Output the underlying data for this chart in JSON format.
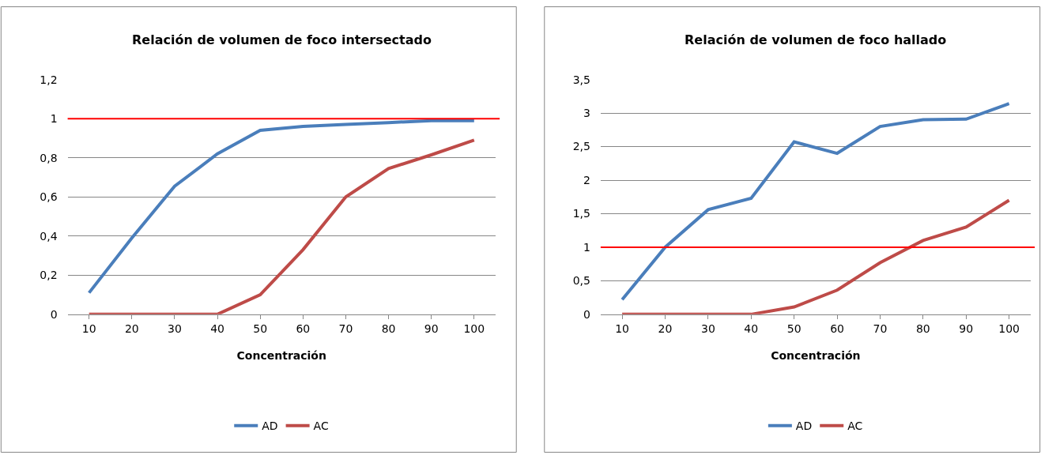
{
  "chart_data": [
    {
      "type": "line",
      "title": "Relación de volumen de foco intersectado",
      "xlabel": "Concentración",
      "categories": [
        "10",
        "20",
        "30",
        "40",
        "50",
        "60",
        "70",
        "80",
        "90",
        "100"
      ],
      "series": [
        {
          "name": "AD",
          "color": "#4a7ebb",
          "values": [
            0.11,
            0.39,
            0.655,
            0.82,
            0.94,
            0.96,
            0.97,
            0.98,
            0.99,
            0.99
          ]
        },
        {
          "name": "AC",
          "color": "#be4b48",
          "values": [
            0,
            0,
            0,
            0,
            0.1,
            0.33,
            0.6,
            0.745,
            0.815,
            0.89
          ]
        }
      ],
      "ylim": [
        0,
        1.2
      ],
      "yticks": [
        {
          "value": 0,
          "label": "0"
        },
        {
          "value": 0.2,
          "label": "0,2"
        },
        {
          "value": 0.4,
          "label": "0,4"
        },
        {
          "value": 0.6,
          "label": "0,6"
        },
        {
          "value": 0.8,
          "label": "0,8"
        },
        {
          "value": 1,
          "label": "1"
        },
        {
          "value": 1.2,
          "label": "1,2"
        }
      ],
      "ref_lines": [
        {
          "axis": "y",
          "value": 1,
          "color": "#ff0000"
        }
      ],
      "grid": "y",
      "legend": "bottom",
      "marker": "none",
      "line_style": "solid"
    },
    {
      "type": "line",
      "title": "Relación de volumen de foco hallado",
      "xlabel": "Concentración",
      "categories": [
        "10",
        "20",
        "30",
        "40",
        "50",
        "60",
        "70",
        "80",
        "90",
        "100"
      ],
      "series": [
        {
          "name": "AD",
          "color": "#4a7ebb",
          "values": [
            0.22,
            1.0,
            1.56,
            1.73,
            2.57,
            2.4,
            2.8,
            2.9,
            2.91,
            3.14
          ]
        },
        {
          "name": "AC",
          "color": "#be4b48",
          "values": [
            0,
            0,
            0,
            0,
            0.11,
            0.36,
            0.77,
            1.1,
            1.3,
            1.7
          ]
        }
      ],
      "ylim": [
        0,
        3.5
      ],
      "yticks": [
        {
          "value": 0,
          "label": "0"
        },
        {
          "value": 0.5,
          "label": "0,5"
        },
        {
          "value": 1,
          "label": "1"
        },
        {
          "value": 1.5,
          "label": "1,5"
        },
        {
          "value": 2,
          "label": "2"
        },
        {
          "value": 2.5,
          "label": "2,5"
        },
        {
          "value": 3,
          "label": "3"
        },
        {
          "value": 3.5,
          "label": "3,5"
        }
      ],
      "ref_lines": [
        {
          "axis": "y",
          "value": 1,
          "color": "#ff0000"
        }
      ],
      "grid": "y",
      "legend": "bottom",
      "marker": "none",
      "line_style": "solid"
    }
  ]
}
